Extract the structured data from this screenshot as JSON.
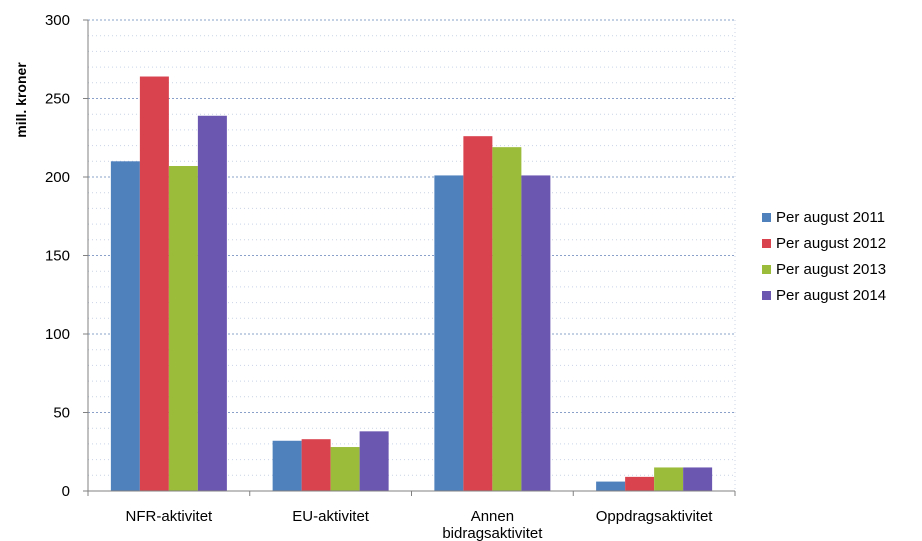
{
  "chart_data": {
    "type": "bar",
    "title": "",
    "xlabel": "",
    "ylabel": "mill. kroner",
    "ylim": [
      0,
      300
    ],
    "yticks": [
      0,
      50,
      100,
      150,
      200,
      250,
      300
    ],
    "grid": true,
    "legend_position": "right",
    "categories": [
      [
        "NFR-aktivitet"
      ],
      [
        "EU-aktivitet"
      ],
      [
        "Annen",
        "bidragsaktivitet"
      ],
      [
        "Oppdragsaktivitet"
      ]
    ],
    "series": [
      {
        "name": "Per august 2011",
        "color": "#4f81bd",
        "values": [
          210,
          32,
          201,
          6
        ]
      },
      {
        "name": "Per august 2012",
        "color": "#d9434e",
        "values": [
          264,
          33,
          226,
          9
        ]
      },
      {
        "name": "Per august 2013",
        "color": "#9bbb3b",
        "values": [
          207,
          28,
          219,
          15
        ]
      },
      {
        "name": "Per august 2014",
        "color": "#6b56b0",
        "values": [
          239,
          38,
          201,
          15
        ]
      }
    ]
  }
}
